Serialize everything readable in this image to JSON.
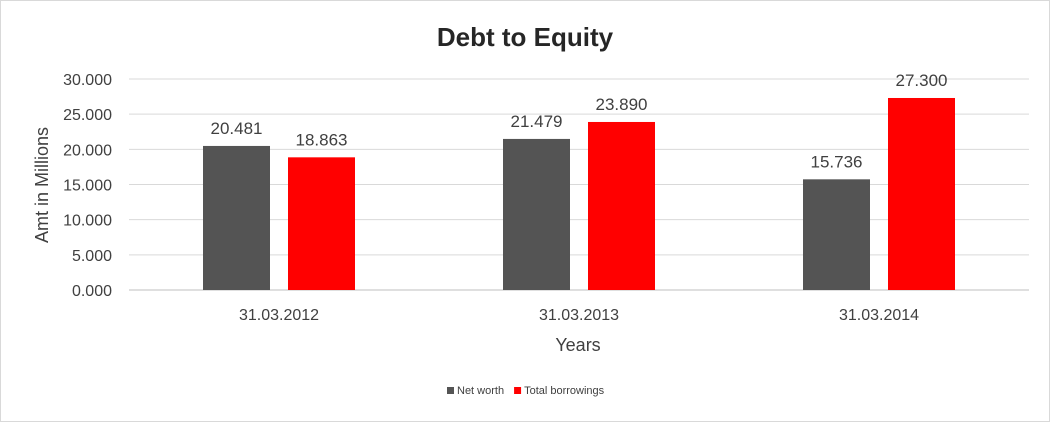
{
  "chart_data": {
    "type": "bar",
    "title": "Debt to Equity",
    "xlabel": "Years",
    "ylabel": "Amt in Millions",
    "categories": [
      "31.03.2012",
      "31.03.2013",
      "31.03.2014"
    ],
    "series": [
      {
        "name": "Net worth",
        "color": "#545454",
        "values": [
          20.481,
          21.479,
          15.736
        ]
      },
      {
        "name": "Total borrowings",
        "color": "#ff0000",
        "values": [
          18.863,
          23.89,
          27.3
        ]
      }
    ],
    "ylim": [
      0,
      30
    ],
    "yticks": [
      0,
      5,
      10,
      15,
      20,
      25,
      30
    ],
    "ytick_labels": [
      "0.000",
      "5.000",
      "10.000",
      "15.000",
      "20.000",
      "25.000",
      "30.000"
    ],
    "data_labels": [
      [
        "20.481",
        "21.479",
        "15.736"
      ],
      [
        "18.863",
        "23.890",
        "27.300"
      ]
    ],
    "grid": true,
    "legend": "bottom"
  }
}
